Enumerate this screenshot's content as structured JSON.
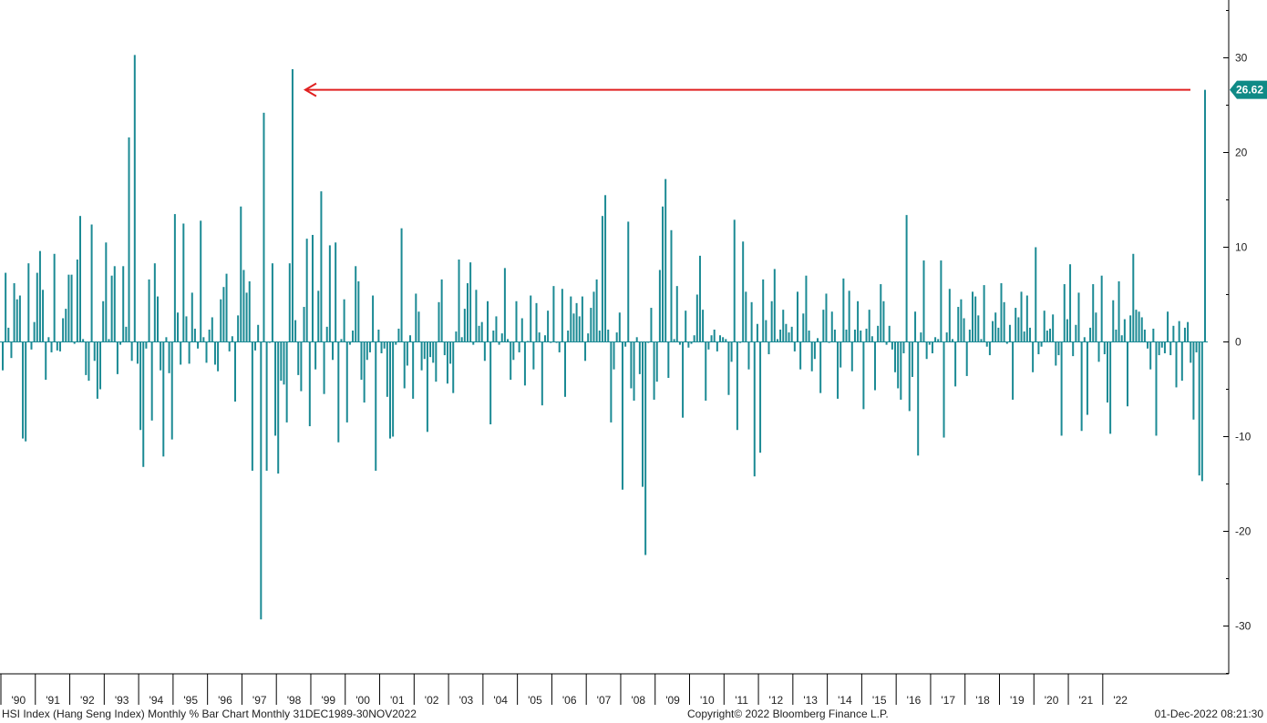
{
  "footer": {
    "left": "HSI Index (Hang Seng Index) Monthly % Bar Chart  Monthly 31DEC1989-30NOV2022",
    "center": "Copyright© 2022 Bloomberg Finance L.P.",
    "right": "01-Dec-2022 08:21:30"
  },
  "colors": {
    "bar": "#1b8a94",
    "arrow": "#e02020",
    "tag": "#0f8a86"
  },
  "chart_data": {
    "type": "bar",
    "title": "",
    "xlabel": "",
    "ylabel": "",
    "ylim": [
      -35,
      36
    ],
    "y_ticks": [
      "30",
      "20",
      "10",
      "0",
      "-10",
      "-20",
      "-30"
    ],
    "x_tick_labels": [
      "'90",
      "'91",
      "'92",
      "'93",
      "'94",
      "'95",
      "'96",
      "'97",
      "'98",
      "'99",
      "'00",
      "'01",
      "'02",
      "'03",
      "'04",
      "'05",
      "'06",
      "'07",
      "'08",
      "'09",
      "'10",
      "'11",
      "'12",
      "'13",
      "'14",
      "'15",
      "'16",
      "'17",
      "'18",
      "'19",
      "'20",
      "'21",
      "'22"
    ],
    "start": "1990-01",
    "end": "2022-11",
    "last_value_label": "26.62",
    "annotation": "arrow from last bar back to the 1998 peak",
    "values": [
      -3,
      7.3,
      1.5,
      -1.7,
      6.2,
      4.5,
      4.9,
      -10.2,
      -10.5,
      8.3,
      -0.8,
      2.1,
      7.3,
      9.6,
      5.5,
      -4,
      0.5,
      -1.1,
      9.3,
      -0.9,
      -1,
      2.5,
      3.5,
      7.1,
      7.1,
      -0.2,
      8.7,
      13.3,
      0.3,
      -3.5,
      -4.1,
      12.4,
      -2,
      -6,
      -5,
      4.3,
      10.5,
      0.3,
      7,
      8,
      -3.4,
      -0.3,
      8,
      1.6,
      21.6,
      -2,
      30.3,
      -2.3,
      -9.3,
      -13.2,
      -0.7,
      6.6,
      -8.3,
      8.3,
      4.8,
      -3,
      -12.1,
      0.5,
      -3.3,
      -10.3,
      13.5,
      3.1,
      -2.4,
      12.5,
      2.7,
      -2.3,
      5.2,
      1.4,
      -0.7,
      12.8,
      0.5,
      -2.2,
      1.3,
      2.6,
      -2.4,
      -3.1,
      4.5,
      5.8,
      7.2,
      -1,
      0.6,
      -6.3,
      2.8,
      14.3,
      7.6,
      5.2,
      6.4,
      -13.6,
      -0.9,
      1.8,
      -29.3,
      24.2,
      -13.6,
      -0.1,
      8.3,
      -9.9,
      -13.9,
      -4.1,
      -4.5,
      -8.5,
      8.3,
      28.8,
      2.3,
      -3.5,
      -5.2,
      3.7,
      10.9,
      -8.9,
      11.3,
      -2.9,
      5.4,
      15.9,
      -5.5,
      1.6,
      10.2,
      -1.9,
      10.5,
      -10.6,
      0.3,
      4.5,
      -8.5,
      -0.3,
      1.2,
      8,
      6.4,
      -4,
      -6.4,
      -1.9,
      -1.1,
      4.9,
      -13.6,
      1.3,
      -1.2,
      -0.7,
      -5.8,
      -10.2,
      -10,
      -0.3,
      1.4,
      12,
      -4.9,
      -2.5,
      0.7,
      -6,
      5.1,
      3.2,
      -3,
      -1.8,
      -9.5,
      -1.6,
      -2.2,
      -4.2,
      4.2,
      6.6,
      -1.4,
      -4.4,
      -2.3,
      -5.4,
      1.1,
      8.7,
      0.5,
      3.5,
      6.2,
      8.4,
      -0.3,
      5.5,
      1.7,
      2.1,
      -2,
      4.3,
      -8.7,
      1.2,
      2.7,
      -0.3,
      0.9,
      7.8,
      0.3,
      -4,
      -1.9,
      4.3,
      -1.1,
      2.5,
      -4.6,
      0.1,
      4.9,
      -2.9,
      4.1,
      1,
      -6.7,
      0.7,
      3.3,
      -0.1,
      5.9,
      -0.1,
      -1.1,
      5.6,
      -5.8,
      1.2,
      4.8,
      3,
      4.1,
      2.7,
      4.8,
      -2,
      0.9,
      3.6,
      5.3,
      6.6,
      1.2,
      13.3,
      15.5,
      1.3,
      -8.5,
      -2.9,
      1,
      3.1,
      -15.6,
      -0.5,
      12.7,
      -4.9,
      -6.2,
      0.5,
      -3.4,
      -15.3,
      -22.5,
      -0.1,
      3.6,
      -6.1,
      -4.2,
      7.6,
      14.3,
      17.2,
      -3.8,
      11.8,
      0.3,
      5.9,
      -0.3,
      -8,
      3.3,
      -0.6,
      -0.2,
      0.7,
      5,
      9.1,
      3.4,
      -6.2,
      -0.8,
      0.7,
      1.3,
      -1,
      0.7,
      0.5,
      0.3,
      -5.6,
      -2.1,
      12.9,
      -9.3,
      -0.1,
      10.6,
      5.3,
      -2.9,
      4.2,
      -14.2,
      1.9,
      -11.7,
      6.6,
      2.3,
      -1.3,
      4.3,
      7.7,
      0.3,
      1.3,
      3.4,
      1.9,
      1,
      1.6,
      -1,
      5.3,
      -2.9,
      3,
      7,
      1.2,
      -3.1,
      -1.8,
      0.4,
      -5.4,
      3.4,
      5.1,
      -0.1,
      3.2,
      1.3,
      -6,
      -2.7,
      6.7,
      1.3,
      5.4,
      -3.1,
      1.3,
      4.3,
      1.2,
      -7.1,
      1.4,
      3.4,
      0.6,
      -5.1,
      1.7,
      6.1,
      4.3,
      -0.3,
      1.7,
      -0.8,
      -3.2,
      -4.9,
      -6.1,
      -1.2,
      13.4,
      -7.3,
      -3.7,
      3.2,
      -12,
      1,
      8.6,
      -1.8,
      -0.3,
      -1.2,
      0.5,
      0.3,
      8.6,
      -10.1,
      1,
      5.6,
      0.3,
      -4.7,
      3.7,
      4.5,
      2.5,
      -3.6,
      1.3,
      5.3,
      4.8,
      2.8,
      0.3,
      6,
      -0.5,
      -1.4,
      2.2,
      3.1,
      1.5,
      6.2,
      4.2,
      -0.2,
      1.8,
      -6.1,
      3.6,
      2.6,
      5.3,
      1.1,
      4.9,
      1.5,
      -3.2,
      10,
      -1.3,
      -0.5,
      3.3,
      1.2,
      1.4,
      2.9,
      -2.5,
      -1.4,
      -9.9,
      6.1,
      2.4,
      8.2,
      -1.5,
      1.8,
      5.2,
      -9.4,
      0.5,
      -7.7,
      1.5,
      6.1,
      3.1,
      -2.1,
      7,
      -1.3,
      -6.4,
      -9.7,
      4.4,
      1.3,
      6.4,
      0.7,
      2.4,
      -6.8,
      2.8,
      9.3,
      3.4,
      3.2,
      2.6,
      1.3,
      -0.7,
      -2.9,
      1.4,
      -9.9,
      -1.4,
      -0.6,
      -1.2,
      3.2,
      -1.4,
      1.7,
      -4.8,
      2.2,
      -4.1,
      1.5,
      2.1,
      -2.2,
      -8.2,
      -1.1,
      -14.1,
      -14.7,
      26.62
    ]
  }
}
